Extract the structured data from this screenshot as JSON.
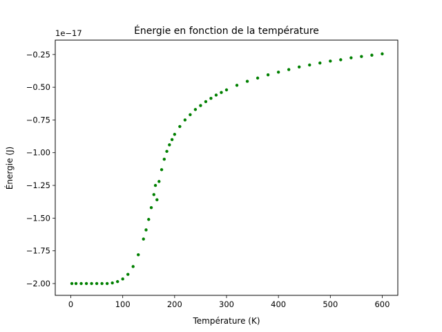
{
  "chart_data": {
    "type": "scatter",
    "title": "Énergie en fonction de la température",
    "xlabel": "Température (K)",
    "ylabel": "Énergie (J)",
    "y_offset_label": "1e−17",
    "y_scale_factor": 1e-17,
    "xlim": [
      -30,
      630
    ],
    "ylim": [
      -2.09,
      -0.14
    ],
    "x_ticks": [
      0,
      100,
      200,
      300,
      400,
      500,
      600
    ],
    "x_tick_labels": [
      "0",
      "100",
      "200",
      "300",
      "400",
      "500",
      "600"
    ],
    "y_ticks": [
      -2.0,
      -1.75,
      -1.5,
      -1.25,
      -1.0,
      -0.75,
      -0.5,
      -0.25
    ],
    "y_tick_labels": [
      "−2.00",
      "−1.75",
      "−1.50",
      "−1.25",
      "−1.00",
      "−0.75",
      "−0.50",
      "−0.25"
    ],
    "grid": false,
    "marker_color": "#008000",
    "series": [
      {
        "name": "",
        "color": "#008000",
        "x": [
          2,
          10,
          20,
          30,
          40,
          50,
          60,
          70,
          80,
          90,
          100,
          110,
          120,
          130,
          140,
          145,
          150,
          155,
          160,
          163,
          166,
          170,
          175,
          180,
          185,
          190,
          195,
          200,
          210,
          220,
          230,
          240,
          250,
          260,
          270,
          280,
          290,
          300,
          320,
          340,
          360,
          380,
          400,
          420,
          440,
          460,
          480,
          500,
          520,
          540,
          560,
          580,
          600
        ],
        "y": [
          -2.0,
          -2.0,
          -2.0,
          -2.0,
          -2.0,
          -2.0,
          -2.0,
          -2.0,
          -1.995,
          -1.985,
          -1.965,
          -1.93,
          -1.87,
          -1.78,
          -1.66,
          -1.59,
          -1.51,
          -1.42,
          -1.32,
          -1.25,
          -1.36,
          -1.22,
          -1.13,
          -1.05,
          -0.99,
          -0.94,
          -0.9,
          -0.86,
          -0.8,
          -0.75,
          -0.71,
          -0.67,
          -0.64,
          -0.61,
          -0.585,
          -0.56,
          -0.54,
          -0.52,
          -0.485,
          -0.455,
          -0.43,
          -0.405,
          -0.385,
          -0.365,
          -0.345,
          -0.33,
          -0.315,
          -0.3,
          -0.29,
          -0.275,
          -0.265,
          -0.255,
          -0.245
        ]
      }
    ]
  }
}
